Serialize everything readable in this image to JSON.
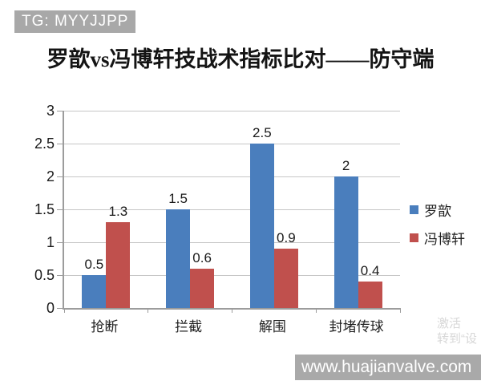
{
  "badge": {
    "text": "TG: MYYJJPP"
  },
  "title": "罗歆vs冯博轩技战术指标比对——防守端",
  "chart_data": {
    "type": "bar",
    "categories": [
      "抢断",
      "拦截",
      "解围",
      "封堵传球"
    ],
    "series": [
      {
        "name": "罗歆",
        "color": "#4a7ebd",
        "values": [
          0.5,
          1.5,
          2.5,
          2
        ],
        "labels": [
          "0.5",
          "1.5",
          "2.5",
          "2"
        ]
      },
      {
        "name": "冯博轩",
        "color": "#c0504d",
        "values": [
          1.3,
          0.6,
          0.9,
          0.4
        ],
        "labels": [
          "1.3",
          "0.6",
          "0.9",
          "0.4"
        ]
      }
    ],
    "title": "罗歆vs冯博轩技战术指标比对——防守端",
    "xlabel": "",
    "ylabel": "",
    "ylim": [
      0,
      3
    ],
    "yticks": [
      0,
      0.5,
      1,
      1.5,
      2,
      2.5,
      3
    ],
    "ytick_labels": [
      "0",
      "0.5",
      "1",
      "1.5",
      "2",
      "2.5",
      "3"
    ],
    "grid": true,
    "legend_position": "right"
  },
  "activation_watermark": {
    "line1": "激活",
    "line2": "转到“设"
  },
  "site_watermark": {
    "text": "www.huajianvalve.com"
  },
  "colors": {
    "badge_bg": "#a8a8a8",
    "sitebar_bg": "#a9a9a9",
    "grid": "#c6c6c6",
    "axis": "#9c9c9c",
    "series1": "#4a7ebd",
    "series2": "#c0504d"
  }
}
